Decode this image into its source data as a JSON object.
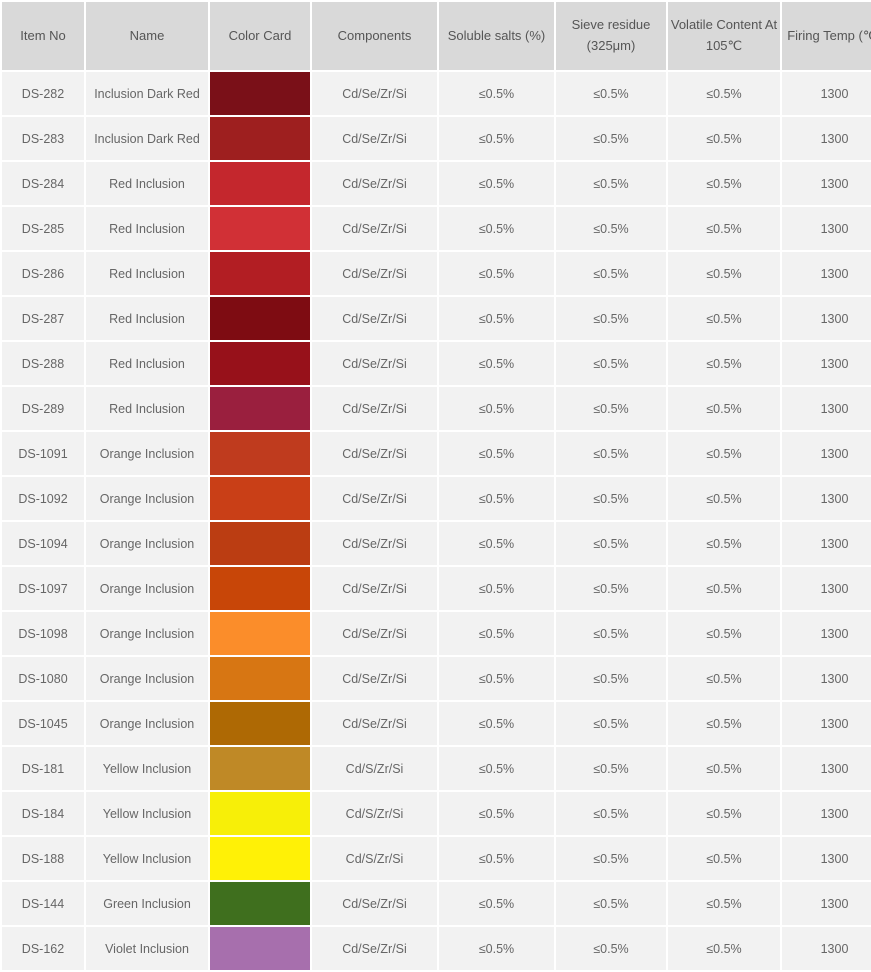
{
  "table": {
    "background_color": "#ffffff",
    "header_bg": "#d9d9d9",
    "cell_bg": "#f2f2f2",
    "text_color": "#666666",
    "columns": [
      "Item No",
      "Name",
      "Color Card",
      "Components",
      "Soluble salts (%)",
      "Sieve residue (325μm)",
      "Volatile Content At 105℃",
      "Firing Temp (℃)"
    ],
    "rows": [
      {
        "item": "DS-282",
        "name": "Inclusion Dark Red",
        "color": "#7a1018",
        "components": "Cd/Se/Zr/Si",
        "salts": "≤0.5%",
        "sieve": "≤0.5%",
        "volatile": "≤0.5%",
        "firing": "1300"
      },
      {
        "item": "DS-283",
        "name": "Inclusion Dark Red",
        "color": "#9e1f1f",
        "components": "Cd/Se/Zr/Si",
        "salts": "≤0.5%",
        "sieve": "≤0.5%",
        "volatile": "≤0.5%",
        "firing": "1300"
      },
      {
        "item": "DS-284",
        "name": "Red Inclusion",
        "color": "#c4272d",
        "components": "Cd/Se/Zr/Si",
        "salts": "≤0.5%",
        "sieve": "≤0.5%",
        "volatile": "≤0.5%",
        "firing": "1300"
      },
      {
        "item": "DS-285",
        "name": "Red Inclusion",
        "color": "#d13036",
        "components": "Cd/Se/Zr/Si",
        "salts": "≤0.5%",
        "sieve": "≤0.5%",
        "volatile": "≤0.5%",
        "firing": "1300"
      },
      {
        "item": "DS-286",
        "name": "Red Inclusion",
        "color": "#b21e23",
        "components": "Cd/Se/Zr/Si",
        "salts": "≤0.5%",
        "sieve": "≤0.5%",
        "volatile": "≤0.5%",
        "firing": "1300"
      },
      {
        "item": "DS-287",
        "name": "Red Inclusion",
        "color": "#7e0c12",
        "components": "Cd/Se/Zr/Si",
        "salts": "≤0.5%",
        "sieve": "≤0.5%",
        "volatile": "≤0.5%",
        "firing": "1300"
      },
      {
        "item": "DS-288",
        "name": "Red Inclusion",
        "color": "#97111a",
        "components": "Cd/Se/Zr/Si",
        "salts": "≤0.5%",
        "sieve": "≤0.5%",
        "volatile": "≤0.5%",
        "firing": "1300"
      },
      {
        "item": "DS-289",
        "name": "Red Inclusion",
        "color": "#9a1f3e",
        "components": "Cd/Se/Zr/Si",
        "salts": "≤0.5%",
        "sieve": "≤0.5%",
        "volatile": "≤0.5%",
        "firing": "1300"
      },
      {
        "item": "DS-1091",
        "name": "Orange Inclusion",
        "color": "#bf3b1e",
        "components": "Cd/Se/Zr/Si",
        "salts": "≤0.5%",
        "sieve": "≤0.5%",
        "volatile": "≤0.5%",
        "firing": "1300"
      },
      {
        "item": "DS-1092",
        "name": "Orange Inclusion",
        "color": "#c93f17",
        "components": "Cd/Se/Zr/Si",
        "salts": "≤0.5%",
        "sieve": "≤0.5%",
        "volatile": "≤0.5%",
        "firing": "1300"
      },
      {
        "item": "DS-1094",
        "name": "Orange Inclusion",
        "color": "#bb3d12",
        "components": "Cd/Se/Zr/Si",
        "salts": "≤0.5%",
        "sieve": "≤0.5%",
        "volatile": "≤0.5%",
        "firing": "1300"
      },
      {
        "item": "DS-1097",
        "name": "Orange Inclusion",
        "color": "#c84608",
        "components": "Cd/Se/Zr/Si",
        "salts": "≤0.5%",
        "sieve": "≤0.5%",
        "volatile": "≤0.5%",
        "firing": "1300"
      },
      {
        "item": "DS-1098",
        "name": "Orange Inclusion",
        "color": "#fb8d2a",
        "components": "Cd/Se/Zr/Si",
        "salts": "≤0.5%",
        "sieve": "≤0.5%",
        "volatile": "≤0.5%",
        "firing": "1300"
      },
      {
        "item": "DS-1080",
        "name": "Orange Inclusion",
        "color": "#d77613",
        "components": "Cd/Se/Zr/Si",
        "salts": "≤0.5%",
        "sieve": "≤0.5%",
        "volatile": "≤0.5%",
        "firing": "1300"
      },
      {
        "item": "DS-1045",
        "name": "Orange Inclusion",
        "color": "#ae6904",
        "components": "Cd/Se/Zr/Si",
        "salts": "≤0.5%",
        "sieve": "≤0.5%",
        "volatile": "≤0.5%",
        "firing": "1300"
      },
      {
        "item": "DS-181",
        "name": "Yellow Inclusion",
        "color": "#bf8926",
        "components": "Cd/S/Zr/Si",
        "salts": "≤0.5%",
        "sieve": "≤0.5%",
        "volatile": "≤0.5%",
        "firing": "1300"
      },
      {
        "item": "DS-184",
        "name": "Yellow Inclusion",
        "color": "#f7ef08",
        "components": "Cd/S/Zr/Si",
        "salts": "≤0.5%",
        "sieve": "≤0.5%",
        "volatile": "≤0.5%",
        "firing": "1300"
      },
      {
        "item": "DS-188",
        "name": "Yellow Inclusion",
        "color": "#fff106",
        "components": "Cd/S/Zr/Si",
        "salts": "≤0.5%",
        "sieve": "≤0.5%",
        "volatile": "≤0.5%",
        "firing": "1300"
      },
      {
        "item": "DS-144",
        "name": "Green Inclusion",
        "color": "#3f6f1e",
        "components": "Cd/Se/Zr/Si",
        "salts": "≤0.5%",
        "sieve": "≤0.5%",
        "volatile": "≤0.5%",
        "firing": "1300"
      },
      {
        "item": "DS-162",
        "name": "Violet Inclusion",
        "color": "#a76fad",
        "components": "Cd/Se/Zr/Si",
        "salts": "≤0.5%",
        "sieve": "≤0.5%",
        "volatile": "≤0.5%",
        "firing": "1300"
      }
    ]
  }
}
